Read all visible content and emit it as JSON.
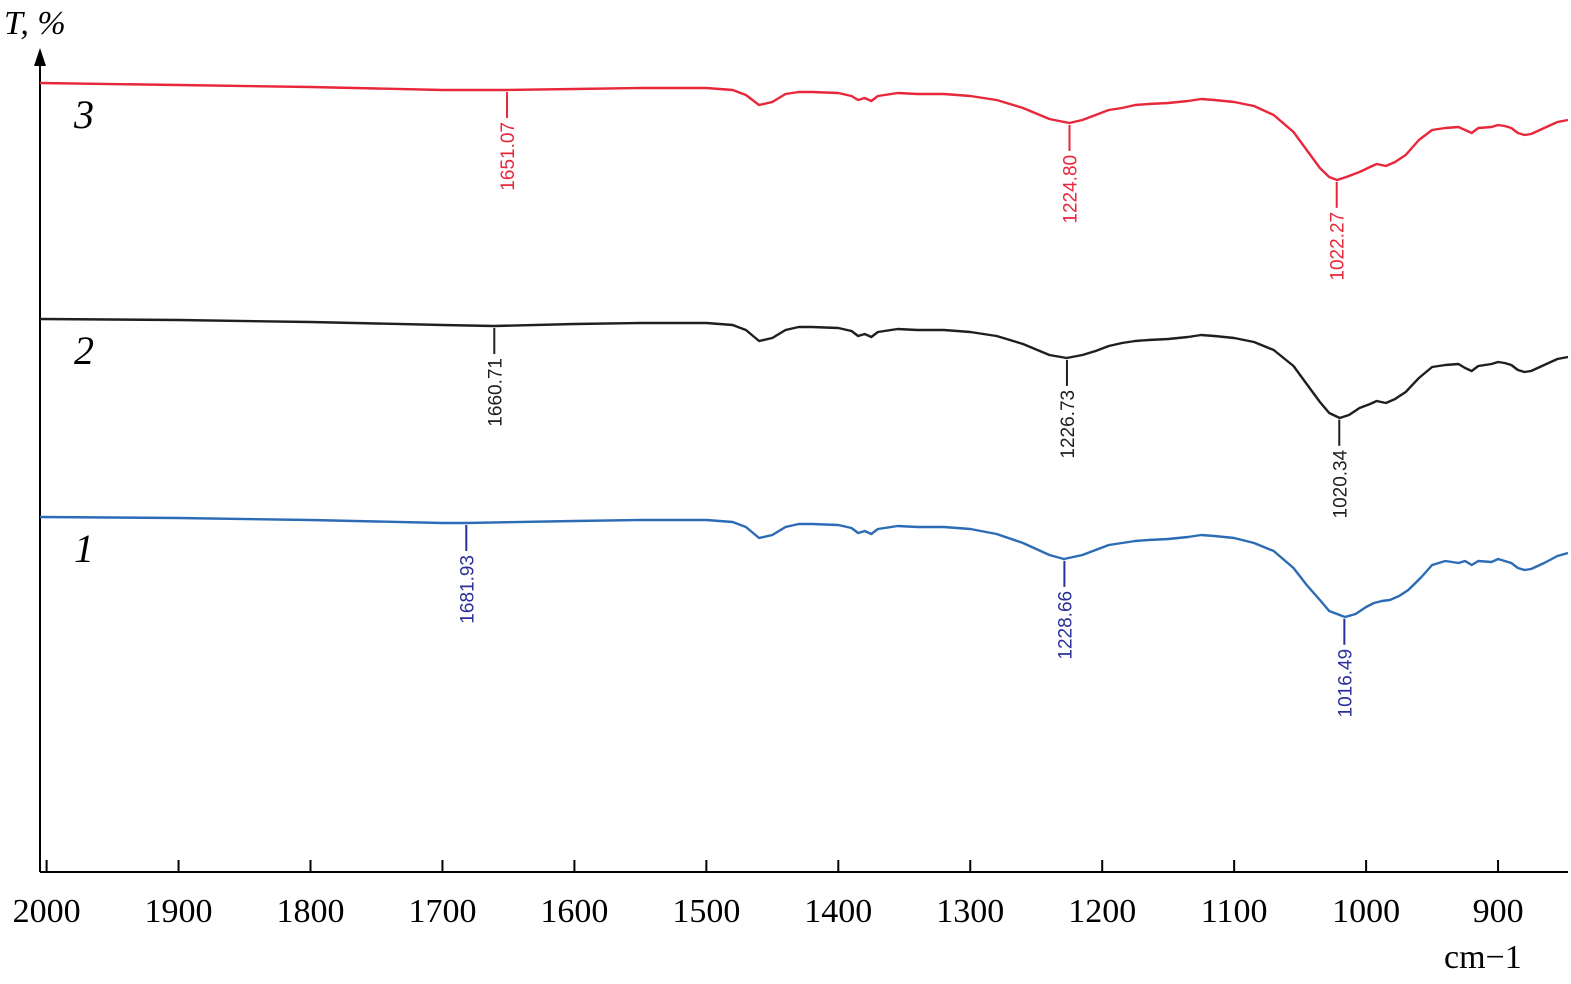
{
  "chart_data": {
    "type": "line",
    "title": "",
    "ylabel": "T, %",
    "xlabel": "cm−1",
    "xlim": [
      2005,
      847
    ],
    "x_reversed": true,
    "y_ticks_shown": false,
    "grid": false,
    "x_ticks": [
      {
        "value": 2000,
        "label": "2000"
      },
      {
        "value": 1900,
        "label": "1900"
      },
      {
        "value": 1800,
        "label": "1800"
      },
      {
        "value": 1700,
        "label": "1700"
      },
      {
        "value": 1600,
        "label": "1600"
      },
      {
        "value": 1500,
        "label": "1500"
      },
      {
        "value": 1400,
        "label": "1400"
      },
      {
        "value": 1300,
        "label": "1300"
      },
      {
        "value": 1200,
        "label": "1200"
      },
      {
        "value": 1100,
        "label": "1100"
      },
      {
        "value": 1000,
        "label": "1000"
      },
      {
        "value": 900,
        "label": "900"
      }
    ],
    "series": [
      {
        "label": "3",
        "color": "#e8273b",
        "offset": 0,
        "x": [
          2005,
          1900,
          1800,
          1700,
          1651,
          1600,
          1550,
          1500,
          1480,
          1470,
          1460,
          1450,
          1440,
          1430,
          1420,
          1400,
          1390,
          1385,
          1380,
          1375,
          1370,
          1365,
          1355,
          1340,
          1320,
          1300,
          1280,
          1260,
          1240,
          1225,
          1215,
          1205,
          1195,
          1185,
          1175,
          1165,
          1150,
          1135,
          1125,
          1115,
          1100,
          1085,
          1070,
          1055,
          1045,
          1035,
          1028,
          1022,
          1015,
          1005,
          997,
          992,
          985,
          978,
          970,
          960,
          950,
          940,
          930,
          925,
          920,
          915,
          905,
          900,
          895,
          890,
          885,
          880,
          875,
          865,
          855,
          847
        ],
        "y": [
          97,
          95,
          93,
          90,
          90,
          91,
          92,
          92,
          90,
          85,
          75,
          78,
          86,
          88,
          88,
          87,
          84,
          80,
          82,
          79,
          84,
          85,
          87,
          86,
          86,
          84,
          80,
          72,
          61,
          57,
          60,
          65,
          70,
          72,
          75,
          76,
          77,
          79,
          81,
          80,
          78,
          74,
          65,
          48,
          30,
          12,
          3,
          0,
          3,
          8,
          13,
          16,
          14,
          18,
          25,
          40,
          50,
          52,
          53,
          50,
          47,
          52,
          53,
          55,
          54,
          52,
          47,
          45,
          46,
          52,
          58,
          60
        ]
      },
      {
        "label": "2",
        "color": "#1f1f1f",
        "offset": 0,
        "x": [
          2005,
          1900,
          1800,
          1700,
          1661,
          1600,
          1550,
          1500,
          1480,
          1470,
          1460,
          1450,
          1440,
          1430,
          1420,
          1400,
          1390,
          1385,
          1380,
          1375,
          1370,
          1365,
          1355,
          1340,
          1320,
          1300,
          1280,
          1260,
          1240,
          1227,
          1215,
          1205,
          1195,
          1185,
          1175,
          1165,
          1150,
          1135,
          1125,
          1115,
          1100,
          1085,
          1070,
          1055,
          1045,
          1035,
          1028,
          1020,
          1013,
          1005,
          997,
          992,
          985,
          978,
          970,
          960,
          950,
          940,
          930,
          925,
          920,
          915,
          905,
          900,
          895,
          890,
          885,
          880,
          875,
          865,
          855,
          847
        ],
        "y": [
          69,
          68,
          66,
          63,
          62,
          64,
          65,
          65,
          63,
          58,
          47,
          50,
          58,
          61,
          61,
          60,
          57,
          52,
          54,
          51,
          56,
          57,
          59,
          58,
          58,
          56,
          52,
          44,
          33,
          30,
          33,
          37,
          42,
          45,
          47,
          48,
          49,
          51,
          53,
          52,
          50,
          46,
          38,
          22,
          4,
          -14,
          -25,
          -30,
          -27,
          -20,
          -16,
          -13,
          -15,
          -11,
          -4,
          10,
          21,
          23,
          24,
          20,
          17,
          22,
          24,
          26,
          25,
          23,
          18,
          16,
          17,
          23,
          29,
          31
        ]
      },
      {
        "label": "1",
        "color": "#2c6bb5",
        "offset": 0,
        "x": [
          2005,
          1900,
          1800,
          1700,
          1682,
          1600,
          1550,
          1500,
          1480,
          1470,
          1460,
          1450,
          1440,
          1430,
          1420,
          1400,
          1390,
          1385,
          1380,
          1375,
          1370,
          1365,
          1355,
          1340,
          1320,
          1300,
          1280,
          1260,
          1240,
          1229,
          1215,
          1205,
          1195,
          1185,
          1175,
          1165,
          1150,
          1135,
          1125,
          1115,
          1100,
          1085,
          1070,
          1055,
          1045,
          1035,
          1028,
          1016,
          1008,
          1000,
          994,
          988,
          982,
          975,
          968,
          958,
          950,
          940,
          930,
          925,
          920,
          915,
          905,
          900,
          895,
          890,
          885,
          880,
          875,
          865,
          855,
          847
        ],
        "y": [
          43,
          42,
          40,
          37,
          37,
          39,
          40,
          40,
          38,
          33,
          22,
          25,
          33,
          36,
          36,
          35,
          32,
          27,
          29,
          26,
          31,
          32,
          34,
          33,
          33,
          31,
          26,
          17,
          5,
          1,
          5,
          10,
          15,
          17,
          19,
          20,
          21,
          23,
          25,
          24,
          22,
          17,
          9,
          -8,
          -25,
          -40,
          -51,
          -57,
          -54,
          -47,
          -43,
          -41,
          -40,
          -36,
          -30,
          -17,
          -5,
          -1,
          -3,
          -1,
          -5,
          -1,
          -2,
          1,
          -1,
          -3,
          -8,
          -10,
          -9,
          -3,
          4,
          7
        ]
      }
    ],
    "annotations": [
      {
        "series": 0,
        "x": 1651.07,
        "text": "1651.07"
      },
      {
        "series": 0,
        "x": 1224.8,
        "text": "1224.80"
      },
      {
        "series": 0,
        "x": 1022.27,
        "text": "1022.27"
      },
      {
        "series": 1,
        "x": 1660.71,
        "text": "1660.71"
      },
      {
        "series": 1,
        "x": 1226.73,
        "text": "1226.73"
      },
      {
        "series": 1,
        "x": 1020.34,
        "text": "1020.34"
      },
      {
        "series": 2,
        "x": 1681.93,
        "text": "1681.93"
      },
      {
        "series": 2,
        "x": 1228.66,
        "text": "1228.66"
      },
      {
        "series": 2,
        "x": 1016.49,
        "text": "1016.49"
      }
    ],
    "annotation_colors": [
      "#e8273b",
      "#1f1f1f",
      "#2a2f9a"
    ]
  }
}
